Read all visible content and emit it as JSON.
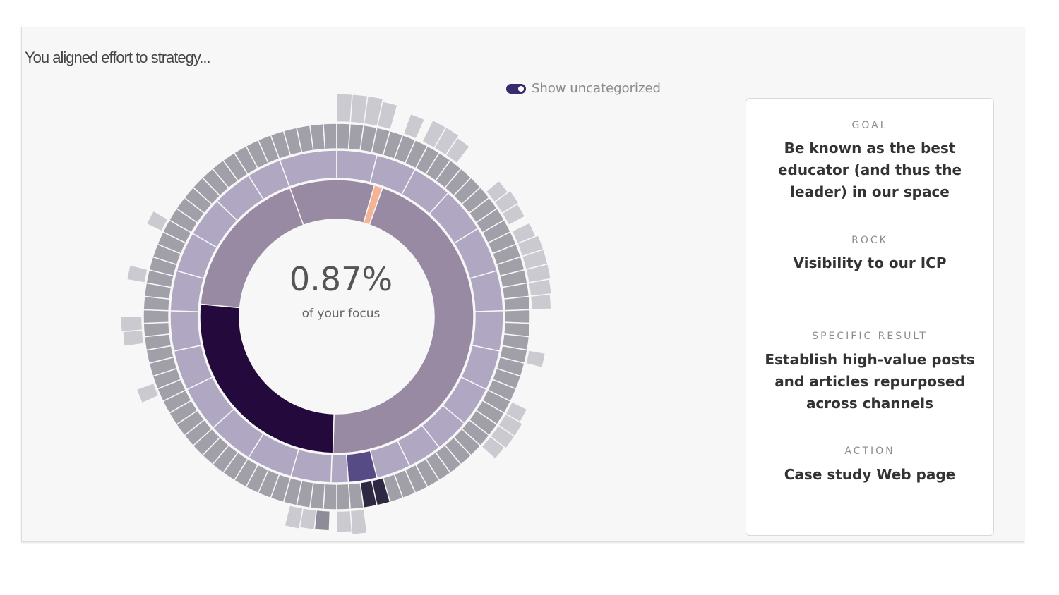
{
  "heading": "You aligned effort to strategy...",
  "toggle": {
    "label": "Show uncategorized",
    "checked": true
  },
  "center": {
    "percent": "0.87%",
    "caption": "of your focus"
  },
  "details": {
    "goal_label": "GOAL",
    "goal": "Be known as the best educator (and thus the leader) in our space",
    "rock_label": "ROCK",
    "rock": "Visibility to our ICP",
    "result_label": "SPECIFIC RESULT",
    "result": "Establish high-value posts and articles repurposed across channels",
    "action_label": "ACTION",
    "action": "Case study Web page"
  },
  "colors": {
    "ring1": "#988aa3",
    "ring1_selected": "#240a3c",
    "ring1_accent": "#f4b394",
    "ring2": "#b0a8c3",
    "ring2_selected": "#574b85",
    "ring3": "#a19fa8",
    "ring3_selected": "#2e2842",
    "ring4": "#cbcad0",
    "ring4_dark": "#8e8c98",
    "toggle": "#3a2a6e"
  },
  "chart_data": {
    "type": "sunburst",
    "selected_share_percent": 0.87,
    "rings": [
      {
        "level": 1,
        "segments": [
          {
            "share": 0.1,
            "highlight": false
          },
          {
            "share": 0.01,
            "highlight": "accent"
          },
          {
            "share": 0.45,
            "highlight": false
          },
          {
            "share": 0.26,
            "highlight": true
          },
          {
            "share": 0.18,
            "highlight": false
          }
        ]
      }
    ]
  }
}
